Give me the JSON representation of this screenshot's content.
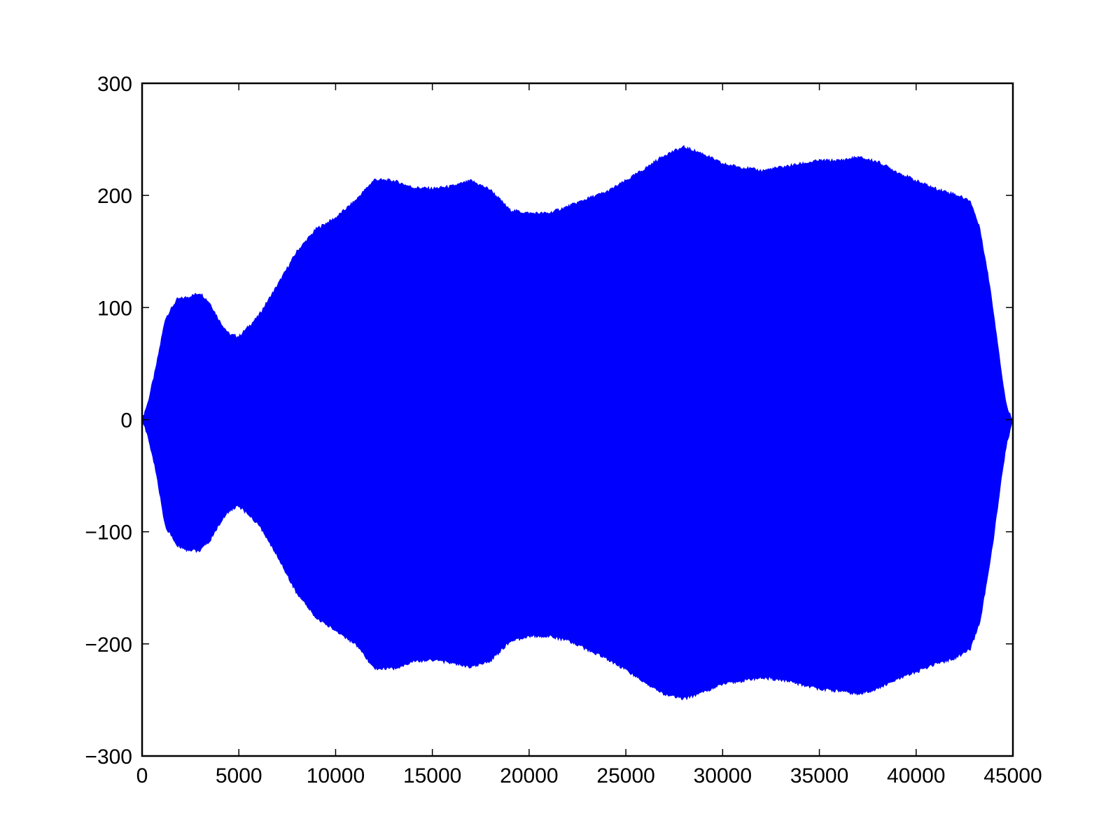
{
  "chart_data": {
    "type": "area",
    "title": "",
    "xlabel": "",
    "ylabel": "",
    "xlim": [
      0,
      45000
    ],
    "ylim": [
      -300,
      300
    ],
    "xticks": [
      0,
      5000,
      10000,
      15000,
      20000,
      25000,
      30000,
      35000,
      40000,
      45000
    ],
    "yticks": [
      300,
      200,
      100,
      0,
      -100,
      -200,
      -300
    ],
    "xtick_labels": [
      "0",
      "5000",
      "10000",
      "15000",
      "20000",
      "25000",
      "30000",
      "35000",
      "40000",
      "45000"
    ],
    "ytick_labels": [
      "300",
      "200",
      "100",
      "0",
      "−100",
      "−200",
      "−300"
    ],
    "grid": false,
    "legend": "none",
    "series_color": "#0000ff",
    "series": [
      {
        "envelope": {
          "x": [
            0,
            300,
            700,
            1200,
            1800,
            2300,
            3000,
            3500,
            4000,
            4500,
            5000,
            6000,
            7000,
            8000,
            9000,
            10000,
            11000,
            12000,
            13000,
            14000,
            15000,
            16000,
            17000,
            18000,
            19000,
            20000,
            21000,
            22000,
            23000,
            24000,
            25000,
            26000,
            27000,
            28000,
            29000,
            30000,
            31000,
            32000,
            33000,
            34000,
            35000,
            36000,
            37000,
            38000,
            39000,
            40000,
            41000,
            42000,
            42800,
            43300,
            43800,
            44200,
            44500,
            44700,
            44850,
            45000
          ],
          "upper": [
            0,
            15,
            45,
            90,
            107,
            109,
            113,
            104,
            88,
            76,
            74,
            92,
            120,
            150,
            170,
            180,
            195,
            214,
            213,
            207,
            206,
            208,
            213,
            205,
            187,
            184,
            184,
            190,
            197,
            203,
            213,
            224,
            236,
            243,
            237,
            228,
            225,
            222,
            225,
            228,
            231,
            231,
            234,
            230,
            221,
            213,
            206,
            201,
            195,
            170,
            120,
            70,
            30,
            10,
            5,
            0
          ],
          "lower": [
            0,
            -15,
            -45,
            -95,
            -112,
            -116,
            -117,
            -108,
            -93,
            -81,
            -77,
            -93,
            -122,
            -155,
            -177,
            -188,
            -200,
            -222,
            -222,
            -216,
            -214,
            -217,
            -221,
            -215,
            -198,
            -193,
            -193,
            -197,
            -205,
            -213,
            -223,
            -235,
            -245,
            -249,
            -243,
            -236,
            -233,
            -230,
            -232,
            -236,
            -240,
            -242,
            -245,
            -240,
            -232,
            -225,
            -218,
            -213,
            -205,
            -180,
            -130,
            -80,
            -40,
            -20,
            -10,
            0
          ]
        }
      }
    ]
  }
}
